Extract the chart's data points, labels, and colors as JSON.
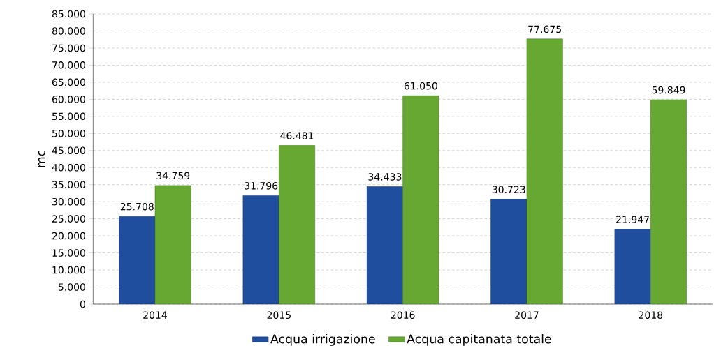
{
  "chart_data": {
    "type": "bar",
    "ylabel": "mc",
    "categories": [
      "2014",
      "2015",
      "2016",
      "2017",
      "2018"
    ],
    "series": [
      {
        "name": "Acqua irrigazione",
        "color": "#1f4e9f",
        "values": [
          25708,
          31796,
          34433,
          30723,
          21947
        ],
        "value_labels": [
          "25.708",
          "31.796",
          "34.433",
          "30.723",
          "21.947"
        ]
      },
      {
        "name": "Acqua capitanata totale",
        "color": "#66a832",
        "values": [
          34759,
          46481,
          61050,
          77675,
          59849
        ],
        "value_labels": [
          "34.759",
          "46.481",
          "61.050",
          "77.675",
          "59.849"
        ]
      }
    ],
    "ylim": [
      0,
      85000
    ],
    "yticks": [
      0,
      {
        "value": 5000,
        "label": "5.000"
      },
      {
        "value": 10000,
        "label": "10.000"
      },
      {
        "value": 15000,
        "label": "15.000"
      },
      {
        "value": 20000,
        "label": "20.000"
      },
      {
        "value": 25000,
        "label": "25.000"
      },
      {
        "value": 30000,
        "label": "30.000"
      },
      {
        "value": 35000,
        "label": "35.000"
      },
      {
        "value": 40000,
        "label": "40.000"
      },
      {
        "value": 45000,
        "label": "45.000"
      },
      {
        "value": 50000,
        "label": "50.000"
      },
      {
        "value": 55000,
        "label": "55.000"
      },
      {
        "value": 60000,
        "label": "60.000"
      },
      {
        "value": 65000,
        "label": "65.000"
      },
      {
        "value": 70000,
        "label": "70.000"
      },
      {
        "value": 75000,
        "label": "75.000"
      },
      {
        "value": 80000,
        "label": "80.000"
      },
      {
        "value": 85000,
        "label": "85.000"
      }
    ],
    "grid": "y",
    "legend": "bottom"
  }
}
